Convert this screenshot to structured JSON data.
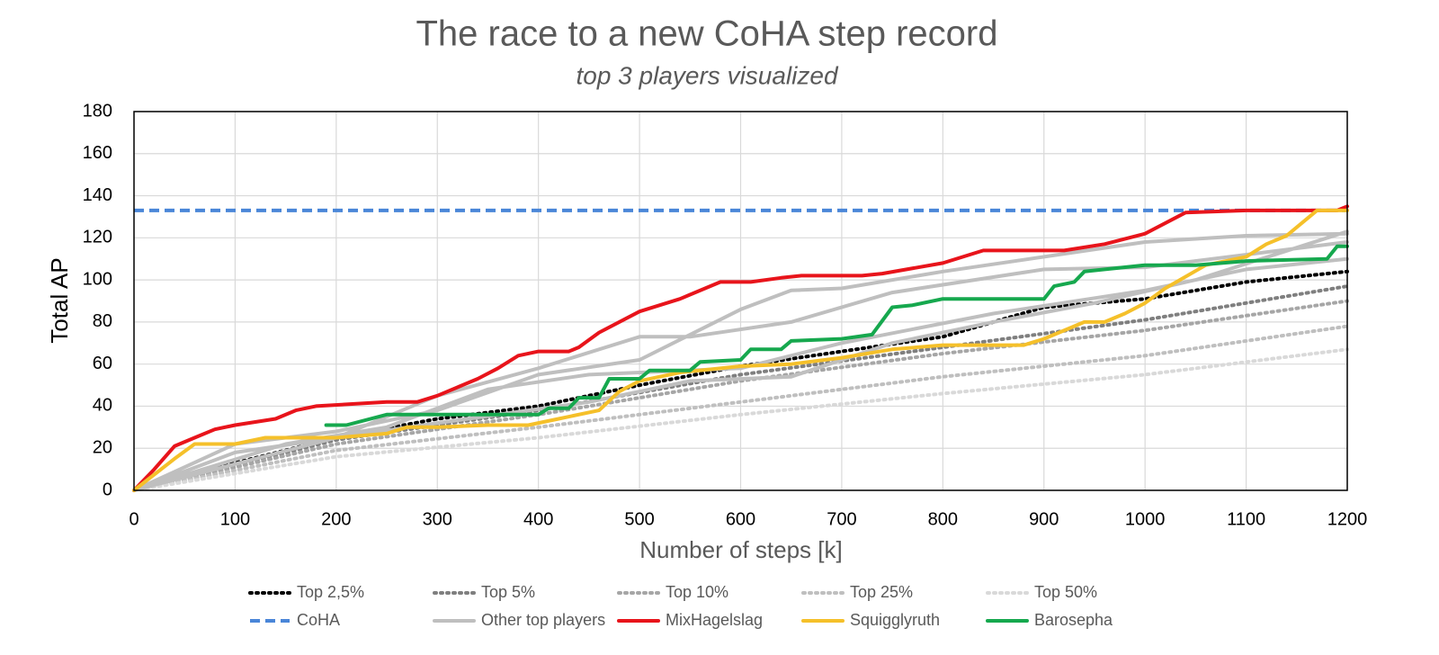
{
  "chart_data": {
    "type": "line",
    "title": "The race to a new CoHA step record",
    "subtitle": "top 3 players visualized",
    "x_label": "Number of steps [k]",
    "y_label": "Total AP",
    "xlim": [
      0,
      1200
    ],
    "xticks": [
      0,
      100,
      200,
      300,
      400,
      500,
      600,
      700,
      800,
      900,
      1000,
      1100,
      1200
    ],
    "ylim": [
      0,
      180
    ],
    "yticks": [
      0,
      20,
      40,
      60,
      80,
      100,
      120,
      140,
      160,
      180
    ],
    "grid": true,
    "series": [
      {
        "name": "Top 2,5%",
        "color": "#000000",
        "dash": "dotted",
        "x": [
          0,
          100,
          200,
          300,
          400,
          500,
          600,
          700,
          800,
          850,
          900,
          1000,
          1100,
          1200
        ],
        "values": [
          0,
          13,
          25,
          34,
          40,
          50,
          59,
          66,
          73,
          80,
          87,
          91,
          99,
          104
        ]
      },
      {
        "name": "Top 5%",
        "color": "#7f7f7f",
        "dash": "dotted",
        "x": [
          0,
          200,
          400,
          600,
          800,
          1000,
          1200
        ],
        "values": [
          0,
          24,
          38,
          55,
          68,
          81,
          97
        ]
      },
      {
        "name": "Top 10%",
        "color": "#a6a6a6",
        "dash": "dotted",
        "x": [
          0,
          200,
          400,
          600,
          800,
          1000,
          1200
        ],
        "values": [
          0,
          22,
          36,
          52,
          65,
          76,
          90
        ]
      },
      {
        "name": "Top 25%",
        "color": "#bfbfbf",
        "dash": "dotted",
        "x": [
          0,
          200,
          400,
          600,
          800,
          1000,
          1200
        ],
        "values": [
          0,
          19,
          30,
          42,
          54,
          64,
          78
        ]
      },
      {
        "name": "Top 50%",
        "color": "#d9d9d9",
        "dash": "dotted",
        "x": [
          0,
          200,
          400,
          600,
          800,
          1000,
          1200
        ],
        "values": [
          0,
          16,
          25,
          36,
          46,
          55,
          67
        ]
      },
      {
        "name": "CoHA",
        "color": "#4a86d8",
        "dash": "dashed",
        "x": [
          0,
          1200
        ],
        "values": [
          133,
          133
        ]
      },
      {
        "name": "Other top players",
        "color": "#bfbfbf",
        "dash": "solid",
        "x": [
          0,
          100,
          200,
          300,
          400,
          500,
          600,
          650,
          700,
          800,
          1000,
          1100,
          1200,
          null,
          0,
          100,
          200,
          300,
          400,
          500,
          550,
          650,
          750,
          900,
          1000,
          1200,
          null,
          0,
          150,
          250,
          350,
          450,
          600,
          700,
          850,
          1000,
          1100,
          1200,
          null,
          0,
          200,
          300,
          450,
          550,
          650,
          750,
          850,
          950,
          1050,
          1200
        ],
        "values": [
          0,
          22,
          28,
          38,
          55,
          62,
          86,
          95,
          96,
          104,
          118,
          121,
          122,
          null,
          0,
          18,
          25,
          45,
          58,
          73,
          73,
          80,
          94,
          105,
          106,
          118,
          null,
          0,
          22,
          30,
          48,
          55,
          58,
          70,
          84,
          95,
          105,
          110,
          null,
          0,
          25,
          32,
          42,
          52,
          54,
          70,
          80,
          89,
          100,
          123
        ]
      },
      {
        "name": "MixHagelslag",
        "color": "#e8141b",
        "dash": "solid",
        "x": [
          0,
          20,
          40,
          60,
          80,
          100,
          140,
          160,
          180,
          250,
          280,
          300,
          340,
          360,
          380,
          400,
          430,
          440,
          460,
          500,
          540,
          580,
          610,
          640,
          660,
          720,
          740,
          800,
          840,
          900,
          920,
          960,
          1000,
          1040,
          1100,
          1190,
          1200
        ],
        "values": [
          0,
          10,
          21,
          25,
          29,
          31,
          34,
          38,
          40,
          42,
          42,
          45,
          53,
          58,
          64,
          66,
          66,
          68,
          75,
          85,
          91,
          99,
          99,
          101,
          102,
          102,
          103,
          108,
          114,
          114,
          114,
          117,
          122,
          132,
          133,
          133,
          135
        ]
      },
      {
        "name": "Squigglyruth",
        "color": "#f5c02a",
        "dash": "solid",
        "x": [
          0,
          40,
          60,
          100,
          130,
          200,
          250,
          270,
          300,
          350,
          390,
          420,
          460,
          480,
          500,
          540,
          600,
          650,
          700,
          750,
          800,
          880,
          900,
          940,
          960,
          980,
          1000,
          1020,
          1060,
          1100,
          1120,
          1140,
          1170,
          1200
        ],
        "values": [
          0,
          15,
          22,
          22,
          25,
          25,
          27,
          30,
          30,
          31,
          31,
          34,
          38,
          47,
          52,
          56,
          59,
          60,
          63,
          67,
          69,
          69,
          72,
          80,
          80,
          84,
          89,
          96,
          107,
          111,
          117,
          121,
          133,
          133
        ]
      },
      {
        "name": "Barosepha",
        "color": "#16a84e",
        "dash": "solid",
        "x": [
          190,
          210,
          250,
          290,
          330,
          400,
          410,
          430,
          440,
          460,
          470,
          500,
          510,
          550,
          560,
          600,
          610,
          640,
          650,
          700,
          730,
          750,
          770,
          800,
          900,
          910,
          930,
          940,
          960,
          1000,
          1050,
          1100,
          1180,
          1190,
          1200
        ],
        "values": [
          31,
          31,
          36,
          36,
          36,
          36,
          39,
          39,
          44,
          44,
          53,
          53,
          57,
          57,
          61,
          62,
          67,
          67,
          71,
          72,
          74,
          87,
          88,
          91,
          91,
          97,
          99,
          104,
          105,
          107,
          107,
          109,
          110,
          116,
          116
        ]
      }
    ]
  }
}
